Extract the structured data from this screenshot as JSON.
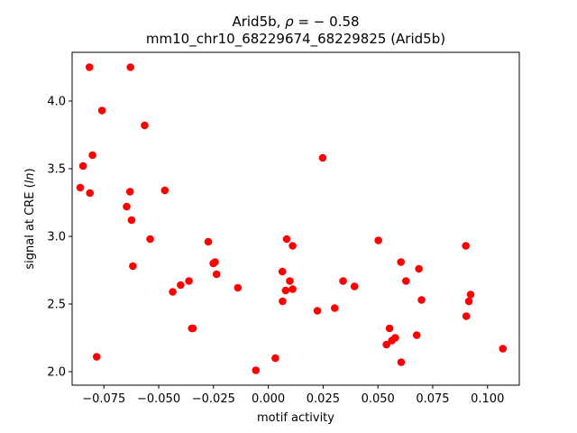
{
  "chart_data": {
    "type": "scatter",
    "title_prefix": "Arid5b, ",
    "title_rho_symbol": "ρ",
    "title_rho_value": " = − 0.58",
    "subtitle": "mm10_chr10_68229674_68229825 (Arid5b)",
    "xlabel": "motif activity",
    "ylabel_prefix": "signal at CRE (",
    "ylabel_italic": "ln",
    "ylabel_suffix": ")",
    "xlim": [
      -0.0895,
      0.1145
    ],
    "ylim": [
      1.9,
      4.36
    ],
    "xticks": [
      {
        "value": -0.075,
        "label": "−0.075"
      },
      {
        "value": -0.05,
        "label": "−0.050"
      },
      {
        "value": -0.025,
        "label": "−0.025"
      },
      {
        "value": 0.0,
        "label": "0.000"
      },
      {
        "value": 0.025,
        "label": "0.025"
      },
      {
        "value": 0.05,
        "label": "0.050"
      },
      {
        "value": 0.075,
        "label": "0.075"
      },
      {
        "value": 0.1,
        "label": "0.100"
      }
    ],
    "yticks": [
      {
        "value": 2.0,
        "label": "2.0"
      },
      {
        "value": 2.5,
        "label": "2.5"
      },
      {
        "value": 3.0,
        "label": "3.0"
      },
      {
        "value": 3.5,
        "label": "3.5"
      },
      {
        "value": 4.0,
        "label": "4.0"
      }
    ],
    "grid": false,
    "point_color": "#ff0000",
    "points": [
      {
        "x": -0.0816,
        "y": 4.25
      },
      {
        "x": -0.0629,
        "y": 4.25
      },
      {
        "x": -0.0759,
        "y": 3.93
      },
      {
        "x": -0.0564,
        "y": 3.82
      },
      {
        "x": -0.0802,
        "y": 3.6
      },
      {
        "x": -0.0845,
        "y": 3.52
      },
      {
        "x": -0.0858,
        "y": 3.36
      },
      {
        "x": -0.0814,
        "y": 3.32
      },
      {
        "x": -0.0631,
        "y": 3.33
      },
      {
        "x": -0.0472,
        "y": 3.34
      },
      {
        "x": -0.0646,
        "y": 3.22
      },
      {
        "x": -0.0624,
        "y": 3.12
      },
      {
        "x": -0.0539,
        "y": 2.98
      },
      {
        "x": -0.0618,
        "y": 2.78
      },
      {
        "x": -0.0783,
        "y": 2.11
      },
      {
        "x": -0.0274,
        "y": 2.96
      },
      {
        "x": -0.0251,
        "y": 2.8
      },
      {
        "x": -0.0243,
        "y": 2.81
      },
      {
        "x": -0.0236,
        "y": 2.72
      },
      {
        "x": -0.0362,
        "y": 2.67
      },
      {
        "x": -0.04,
        "y": 2.64
      },
      {
        "x": -0.0436,
        "y": 2.59
      },
      {
        "x": -0.0349,
        "y": 2.32
      },
      {
        "x": -0.0344,
        "y": 2.32
      },
      {
        "x": -0.0139,
        "y": 2.62
      },
      {
        "x": -0.0057,
        "y": 2.01
      },
      {
        "x": 0.0032,
        "y": 2.1
      },
      {
        "x": 0.0064,
        "y": 2.74
      },
      {
        "x": 0.0084,
        "y": 2.98
      },
      {
        "x": 0.0111,
        "y": 2.93
      },
      {
        "x": 0.0098,
        "y": 2.67
      },
      {
        "x": 0.0079,
        "y": 2.6
      },
      {
        "x": 0.0111,
        "y": 2.61
      },
      {
        "x": 0.0065,
        "y": 2.52
      },
      {
        "x": 0.0248,
        "y": 3.58
      },
      {
        "x": 0.0224,
        "y": 2.45
      },
      {
        "x": 0.0303,
        "y": 2.47
      },
      {
        "x": 0.0341,
        "y": 2.67
      },
      {
        "x": 0.0393,
        "y": 2.63
      },
      {
        "x": 0.0502,
        "y": 2.97
      },
      {
        "x": 0.0605,
        "y": 2.81
      },
      {
        "x": 0.0628,
        "y": 2.67
      },
      {
        "x": 0.0687,
        "y": 2.76
      },
      {
        "x": 0.0699,
        "y": 2.53
      },
      {
        "x": 0.0553,
        "y": 2.32
      },
      {
        "x": 0.0579,
        "y": 2.25
      },
      {
        "x": 0.0564,
        "y": 2.23
      },
      {
        "x": 0.0539,
        "y": 2.2
      },
      {
        "x": 0.0677,
        "y": 2.27
      },
      {
        "x": 0.0606,
        "y": 2.07
      },
      {
        "x": 0.0901,
        "y": 2.93
      },
      {
        "x": 0.0923,
        "y": 2.57
      },
      {
        "x": 0.0915,
        "y": 2.52
      },
      {
        "x": 0.0903,
        "y": 2.41
      },
      {
        "x": 0.107,
        "y": 2.17
      }
    ]
  }
}
